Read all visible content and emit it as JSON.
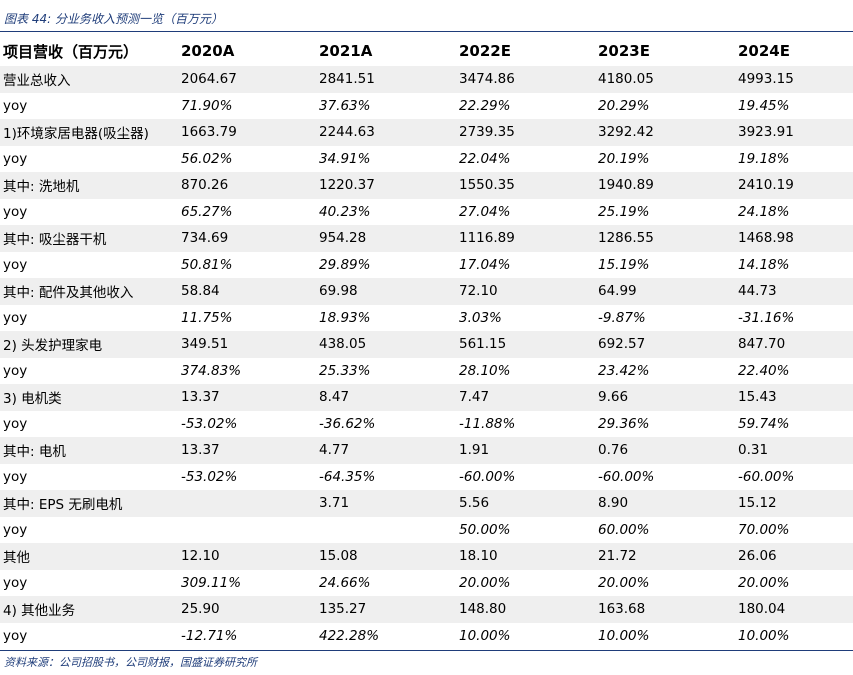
{
  "caption": "图表 44:  分业务收入预测一览（百万元）",
  "header": {
    "label": "项目营收（百万元）",
    "years": [
      "2020A",
      "2021A",
      "2022E",
      "2023E",
      "2024E"
    ]
  },
  "rows": [
    {
      "label": "营业总收入",
      "values": [
        "2064.67",
        "2841.51",
        "3474.86",
        "4180.05",
        "4993.15"
      ]
    },
    {
      "label": "yoy",
      "values": [
        "71.90%",
        "37.63%",
        "22.29%",
        "20.29%",
        "19.45%"
      ]
    },
    {
      "label": "1)环境家居电器(吸尘器)",
      "values": [
        "1663.79",
        "2244.63",
        "2739.35",
        "3292.42",
        "3923.91"
      ]
    },
    {
      "label": "yoy",
      "values": [
        "56.02%",
        "34.91%",
        "22.04%",
        "20.19%",
        "19.18%"
      ]
    },
    {
      "label": "其中: 洗地机",
      "values": [
        "870.26",
        "1220.37",
        "1550.35",
        "1940.89",
        "2410.19"
      ]
    },
    {
      "label": "yoy",
      "values": [
        "65.27%",
        "40.23%",
        "27.04%",
        "25.19%",
        "24.18%"
      ]
    },
    {
      "label": "其中: 吸尘器干机",
      "values": [
        "734.69",
        "954.28",
        "1116.89",
        "1286.55",
        "1468.98"
      ]
    },
    {
      "label": "yoy",
      "values": [
        "50.81%",
        "29.89%",
        "17.04%",
        "15.19%",
        "14.18%"
      ]
    },
    {
      "label": "其中: 配件及其他收入",
      "values": [
        "58.84",
        "69.98",
        "72.10",
        "64.99",
        "44.73"
      ]
    },
    {
      "label": "yoy",
      "values": [
        "11.75%",
        "18.93%",
        "3.03%",
        "-9.87%",
        "-31.16%"
      ]
    },
    {
      "label": "2) 头发护理家电",
      "values": [
        "349.51",
        "438.05",
        "561.15",
        "692.57",
        "847.70"
      ]
    },
    {
      "label": "yoy",
      "values": [
        "374.83%",
        "25.33%",
        "28.10%",
        "23.42%",
        "22.40%"
      ]
    },
    {
      "label": "3) 电机类",
      "values": [
        "13.37",
        "8.47",
        "7.47",
        "9.66",
        "15.43"
      ]
    },
    {
      "label": "yoy",
      "values": [
        "-53.02%",
        "-36.62%",
        "-11.88%",
        "29.36%",
        "59.74%"
      ]
    },
    {
      "label": "其中: 电机",
      "values": [
        "13.37",
        "4.77",
        "1.91",
        "0.76",
        "0.31"
      ]
    },
    {
      "label": "yoy",
      "values": [
        "-53.02%",
        "-64.35%",
        "-60.00%",
        "-60.00%",
        "-60.00%"
      ]
    },
    {
      "label": "其中: EPS 无刷电机",
      "values": [
        "",
        "3.71",
        "5.56",
        "8.90",
        "15.12"
      ]
    },
    {
      "label": "yoy",
      "values": [
        "",
        "",
        "50.00%",
        "60.00%",
        "70.00%"
      ]
    },
    {
      "label": "其他",
      "values": [
        "12.10",
        "15.08",
        "18.10",
        "21.72",
        "26.06"
      ]
    },
    {
      "label": "yoy",
      "values": [
        "309.11%",
        "24.66%",
        "20.00%",
        "20.00%",
        "20.00%"
      ]
    },
    {
      "label": "4) 其他业务",
      "values": [
        "25.90",
        "135.27",
        "148.80",
        "163.68",
        "180.04"
      ]
    },
    {
      "label": "yoy",
      "values": [
        "-12.71%",
        "422.28%",
        "10.00%",
        "10.00%",
        "10.00%"
      ]
    }
  ],
  "source": "资料来源：公司招股书，公司财报，国盛证券研究所",
  "colors": {
    "accent": "#1f3d7a",
    "row_shade": "#efefef"
  }
}
